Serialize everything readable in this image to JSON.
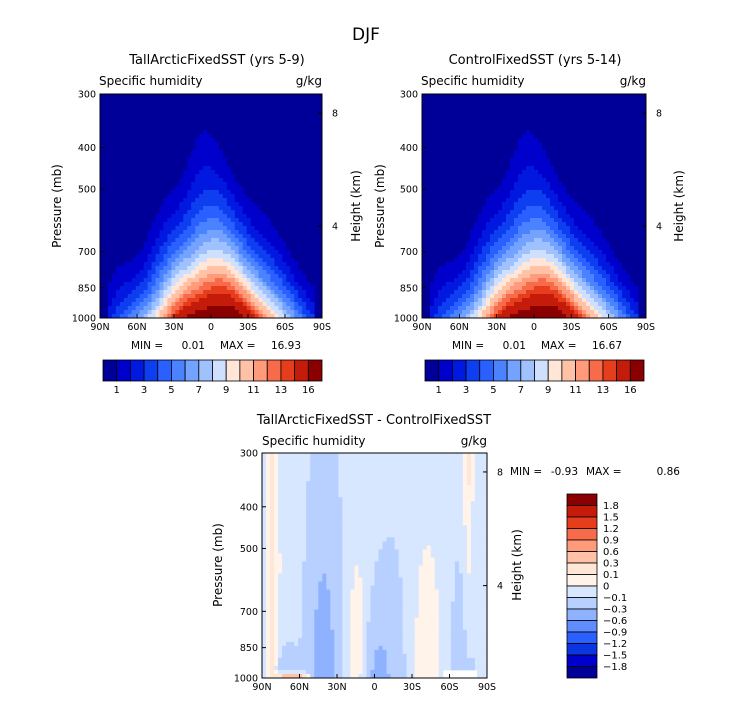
{
  "figure": {
    "season": "DJF",
    "variable": "Specific humidity",
    "units": "g/kg"
  },
  "chart_data": [
    {
      "type": "heatmap",
      "id": "panel_a",
      "title": "TallArcticFixedSST (yrs 5-9)",
      "subtitle_left": "Specific humidity",
      "subtitle_right": "g/kg",
      "xlabel": "",
      "ylabel": "Pressure (mb)",
      "y2label": "Height (km)",
      "x_ticks": [
        "90N",
        "60N",
        "30N",
        "0",
        "30S",
        "60S",
        "90S"
      ],
      "x_range": [
        90,
        -90
      ],
      "y_ticks": [
        300,
        400,
        500,
        700,
        850,
        1000
      ],
      "y_range": [
        300,
        1000
      ],
      "y2_ticks": [
        8,
        4
      ],
      "min_label": "MIN =",
      "min": "0.01",
      "max_label": "MAX =",
      "max": "16.93",
      "levels": [
        1,
        2,
        3,
        4,
        5,
        6,
        7,
        8,
        9,
        10,
        11,
        12,
        13,
        14,
        16
      ],
      "colorbar_labels": [
        "1",
        "3",
        "5",
        "7",
        "9",
        "11",
        "13",
        "16"
      ],
      "colors": [
        "#000099",
        "#0000cc",
        "#0018e0",
        "#0d3ef0",
        "#2a60ff",
        "#4a82ff",
        "#74a3ff",
        "#9fc2ff",
        "#cfe0ff",
        "#ffe6d6",
        "#ffc2a6",
        "#ff9b7a",
        "#f76b4a",
        "#e63d1c",
        "#c41b0a",
        "#8a0000"
      ]
    },
    {
      "type": "heatmap",
      "id": "panel_b",
      "title": "ControlFixedSST (yrs 5-14)",
      "subtitle_left": "Specific humidity",
      "subtitle_right": "g/kg",
      "xlabel": "",
      "ylabel": "Pressure (mb)",
      "y2label": "Height (km)",
      "x_ticks": [
        "90N",
        "60N",
        "30N",
        "0",
        "30S",
        "60S",
        "90S"
      ],
      "x_range": [
        90,
        -90
      ],
      "y_ticks": [
        300,
        400,
        500,
        700,
        850,
        1000
      ],
      "y_range": [
        300,
        1000
      ],
      "y2_ticks": [
        8,
        4
      ],
      "min_label": "MIN =",
      "min": "0.01",
      "max_label": "MAX =",
      "max": "16.67",
      "levels": [
        1,
        2,
        3,
        4,
        5,
        6,
        7,
        8,
        9,
        10,
        11,
        12,
        13,
        14,
        16
      ],
      "colorbar_labels": [
        "1",
        "3",
        "5",
        "7",
        "9",
        "11",
        "13",
        "16"
      ],
      "colors": [
        "#000099",
        "#0000cc",
        "#0018e0",
        "#0d3ef0",
        "#2a60ff",
        "#4a82ff",
        "#74a3ff",
        "#9fc2ff",
        "#cfe0ff",
        "#ffe6d6",
        "#ffc2a6",
        "#ff9b7a",
        "#f76b4a",
        "#e63d1c",
        "#c41b0a",
        "#8a0000"
      ]
    },
    {
      "type": "heatmap",
      "id": "panel_c",
      "title": "TallArcticFixedSST - ControlFixedSST",
      "subtitle_left": "Specific humidity",
      "subtitle_right": "g/kg",
      "xlabel": "",
      "ylabel": "Pressure (mb)",
      "y2label": "Height (km)",
      "x_ticks": [
        "90N",
        "60N",
        "30N",
        "0",
        "30S",
        "60S",
        "90S"
      ],
      "x_range": [
        90,
        -90
      ],
      "y_ticks": [
        300,
        400,
        500,
        700,
        850,
        1000
      ],
      "y_range": [
        300,
        1000
      ],
      "y2_ticks": [
        8,
        4
      ],
      "min_label": "MIN =",
      "min": "-0.93",
      "max_label": "MAX =",
      "max": "0.86",
      "colorbar_labels": [
        "1.8",
        "1.5",
        "1.2",
        "0.9",
        "0.6",
        "0.3",
        "0.1",
        "0",
        "−0.1",
        "−0.3",
        "−0.6",
        "−0.9",
        "−1.2",
        "−1.5",
        "−1.8"
      ],
      "colors": [
        "#8a0000",
        "#c41b0a",
        "#e63d1c",
        "#f76b4a",
        "#ff9b7a",
        "#ffc2a6",
        "#ffe6d6",
        "#fff3ea",
        "#d7e7ff",
        "#b7d0ff",
        "#8fb2ff",
        "#5f8cff",
        "#2a60ff",
        "#0a35e0",
        "#0000cc",
        "#000099"
      ]
    }
  ]
}
